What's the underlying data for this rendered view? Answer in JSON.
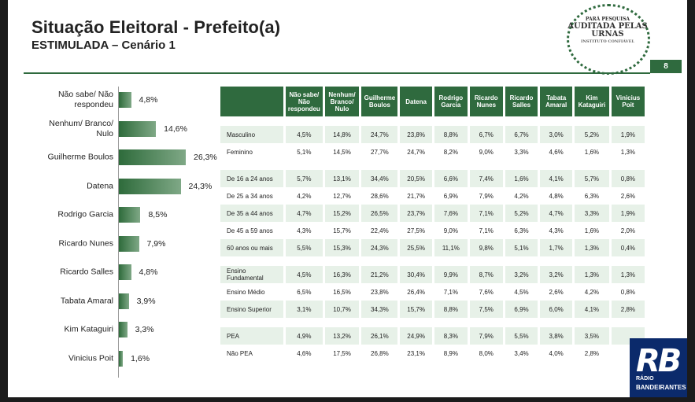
{
  "header": {
    "title": "Situação Eleitoral - Prefeito(a)",
    "subtitle": "ESTIMULADA – Cenário 1",
    "page_number": "8"
  },
  "logo": {
    "line1": "PARÁ PESQUISA",
    "line2": "AUDITADA PELAS URNAS",
    "line3": "INSTITUTO CONFIÁVEL"
  },
  "broadcaster": {
    "mark": "RB",
    "line1": "RÁDIO",
    "line2": "BANDEIRANTES"
  },
  "colors": {
    "accent": "#2f6a3e",
    "row_shade": "#e7f1e8",
    "broadcaster_bg": "#0b2a6b"
  },
  "chart_data": {
    "type": "bar",
    "orientation": "horizontal",
    "categories": [
      "Não sabe/ Não respondeu",
      "Nenhum/ Branco/ Nulo",
      "Guilherme Boulos",
      "Datena",
      "Rodrigo Garcia",
      "Ricardo Nunes",
      "Ricardo Salles",
      "Tabata Amaral",
      "Kim Kataguiri",
      "Vinicius Poit"
    ],
    "labels": [
      "4,8%",
      "14,6%",
      "26,3%",
      "24,3%",
      "8,5%",
      "7,9%",
      "4,8%",
      "3,9%",
      "3,3%",
      "1,6%"
    ],
    "values": [
      4.8,
      14.6,
      26.3,
      24.3,
      8.5,
      7.9,
      4.8,
      3.9,
      3.3,
      1.6
    ]
  },
  "table": {
    "headers": [
      "Não sabe/ Não respondeu",
      "Nenhum/ Branco/ Nulo",
      "Guilherme Boulos",
      "Datena",
      "Rodrigo Garcia",
      "Ricardo Nunes",
      "Ricardo Salles",
      "Tabata Amaral",
      "Kim Kataguiri",
      "Vinicius Poit"
    ],
    "groups": [
      [
        [
          "Masculino",
          "4,5%",
          "14,8%",
          "24,7%",
          "23,8%",
          "8,8%",
          "6,7%",
          "6,7%",
          "3,0%",
          "5,2%",
          "1,9%"
        ],
        [
          "Feminino",
          "5,1%",
          "14,5%",
          "27,7%",
          "24,7%",
          "8,2%",
          "9,0%",
          "3,3%",
          "4,6%",
          "1,6%",
          "1,3%"
        ]
      ],
      [
        [
          "De 16 a 24 anos",
          "5,7%",
          "13,1%",
          "34,4%",
          "20,5%",
          "6,6%",
          "7,4%",
          "1,6%",
          "4,1%",
          "5,7%",
          "0,8%"
        ],
        [
          "De 25 a 34 anos",
          "4,2%",
          "12,7%",
          "28,6%",
          "21,7%",
          "6,9%",
          "7,9%",
          "4,2%",
          "4,8%",
          "6,3%",
          "2,6%"
        ],
        [
          "De 35 a 44 anos",
          "4,7%",
          "15,2%",
          "26,5%",
          "23,7%",
          "7,6%",
          "7,1%",
          "5,2%",
          "4,7%",
          "3,3%",
          "1,9%"
        ],
        [
          "De 45 a 59 anos",
          "4,3%",
          "15,7%",
          "22,4%",
          "27,5%",
          "9,0%",
          "7,1%",
          "6,3%",
          "4,3%",
          "1,6%",
          "2,0%"
        ],
        [
          "60 anos ou mais",
          "5,5%",
          "15,3%",
          "24,3%",
          "25,5%",
          "11,1%",
          "9,8%",
          "5,1%",
          "1,7%",
          "1,3%",
          "0,4%"
        ]
      ],
      [
        [
          "Ensino Fundamental",
          "4,5%",
          "16,3%",
          "21,2%",
          "30,4%",
          "9,9%",
          "8,7%",
          "3,2%",
          "3,2%",
          "1,3%",
          "1,3%"
        ],
        [
          "Ensino Médio",
          "6,5%",
          "16,5%",
          "23,8%",
          "26,4%",
          "7,1%",
          "7,6%",
          "4,5%",
          "2,6%",
          "4,2%",
          "0,8%"
        ],
        [
          "Ensino Superior",
          "3,1%",
          "10,7%",
          "34,3%",
          "15,7%",
          "8,8%",
          "7,5%",
          "6,9%",
          "6,0%",
          "4,1%",
          "2,8%"
        ]
      ],
      [
        [
          "PEA",
          "4,9%",
          "13,2%",
          "26,1%",
          "24,9%",
          "8,3%",
          "7,9%",
          "5,5%",
          "3,8%",
          "3,5%",
          ""
        ],
        [
          "Não PEA",
          "4,6%",
          "17,5%",
          "26,8%",
          "23,1%",
          "8,9%",
          "8,0%",
          "3,4%",
          "4,0%",
          "2,8%",
          ""
        ]
      ]
    ]
  }
}
